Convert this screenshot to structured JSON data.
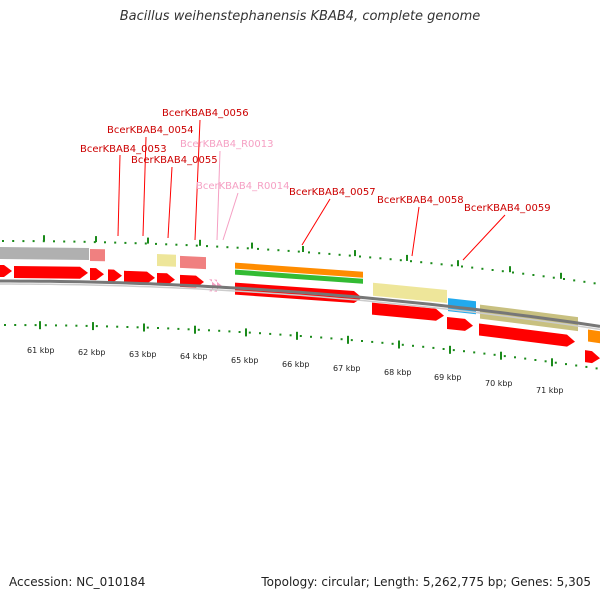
{
  "title": "Bacillus weihenstephanensis KBAB4, complete genome",
  "footer": {
    "accession": "Accession: NC_010184",
    "topology": "Topology: circular; Length: 5,262,775 bp; Genes: 5,305"
  },
  "colors": {
    "cds_red": "#ff0000",
    "pink": "#f08080",
    "pale_yellow": "#eee69a",
    "khaki": "#c8c080",
    "cyan": "#22aaee",
    "orange": "#ff8c00",
    "green": "#33bb33",
    "grey": "#b0b0b0",
    "rna_pink": "#f59fc3",
    "tick_green": "#1a8a1a"
  },
  "gene_labels": [
    {
      "name": "BcerKBAB4_0053",
      "kind": "cds"
    },
    {
      "name": "BcerKBAB4_0054",
      "kind": "cds"
    },
    {
      "name": "BcerKBAB4_0055",
      "kind": "cds"
    },
    {
      "name": "BcerKBAB4_0056",
      "kind": "cds"
    },
    {
      "name": "BcerKBAB4_R0013",
      "kind": "rna"
    },
    {
      "name": "BcerKBAB4_R0014",
      "kind": "rna"
    },
    {
      "name": "BcerKBAB4_0057",
      "kind": "cds"
    },
    {
      "name": "BcerKBAB4_0058",
      "kind": "cds"
    },
    {
      "name": "BcerKBAB4_0059",
      "kind": "cds"
    }
  ],
  "scale_labels": [
    "61 kbp",
    "62 kbp",
    "63 kbp",
    "64 kbp",
    "65 kbp",
    "66 kbp",
    "67 kbp",
    "68 kbp",
    "69 kbp",
    "70 kbp",
    "71 kbp"
  ]
}
